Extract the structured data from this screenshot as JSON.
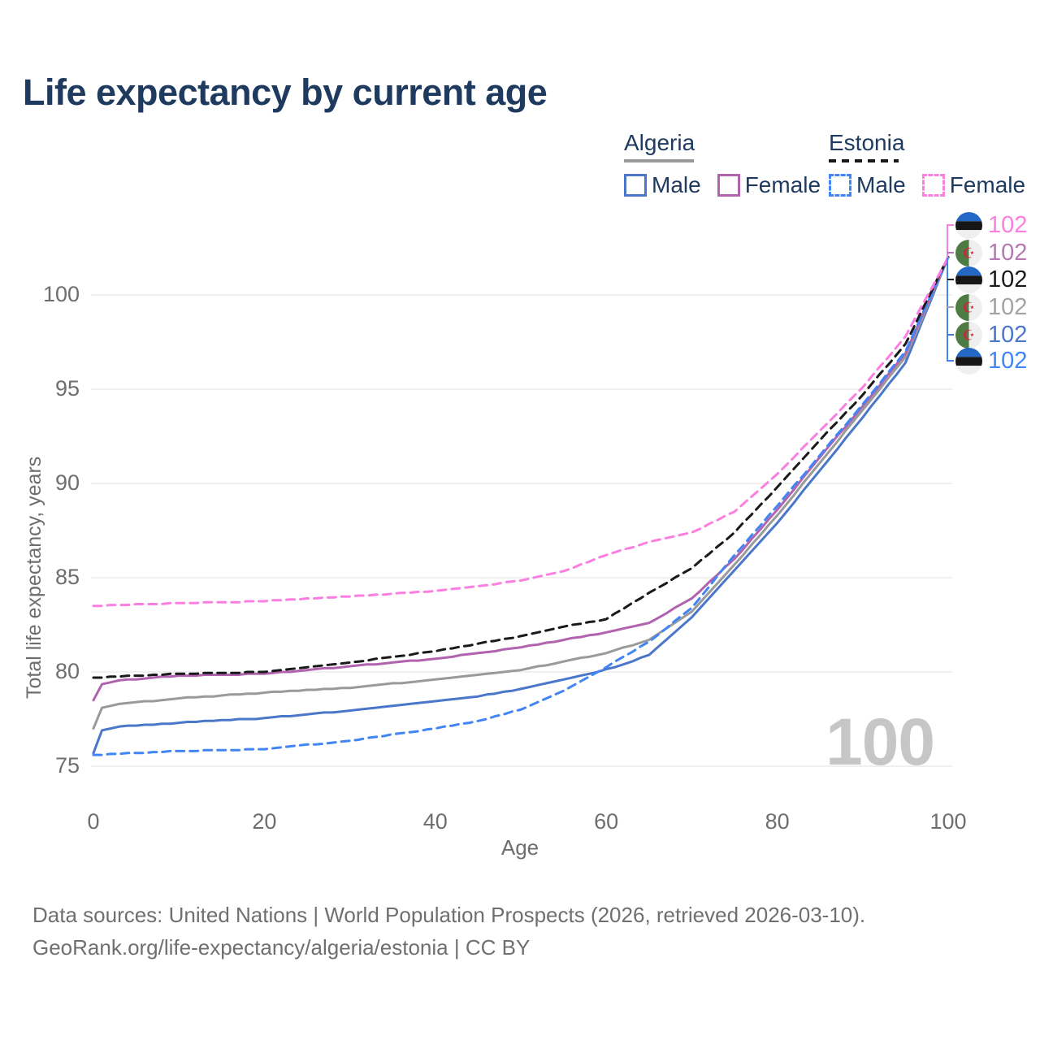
{
  "title": "Life expectancy by current age",
  "watermark": "100",
  "colors": {
    "title_text": "#1e3a5f",
    "axis_text": "#6e6e6e",
    "gridline": "#ebebeb",
    "watermark": "#c6c6c6"
  },
  "legend": {
    "groups": [
      {
        "country": "Algeria",
        "line_style": "solid",
        "underline_color": "#9a9a9a",
        "items": [
          {
            "label": "Male",
            "color": "#4a77c9",
            "dashed": false
          },
          {
            "label": "Female",
            "color": "#b163ae",
            "dashed": false
          }
        ]
      },
      {
        "country": "Estonia",
        "line_style": "dashed",
        "underline_color": "#1a1a1a",
        "items": [
          {
            "label": "Male",
            "color": "#4285f4",
            "dashed": true
          },
          {
            "label": "Female",
            "color": "#fb7fe0",
            "dashed": true
          }
        ]
      }
    ]
  },
  "chart_data": {
    "type": "line",
    "title": "Life expectancy by current age",
    "xlabel": "Age",
    "ylabel": "Total life expectancy, years",
    "xlim": [
      0,
      100
    ],
    "ylim": [
      75,
      102
    ],
    "x_ticks": [
      0,
      20,
      40,
      60,
      80,
      100
    ],
    "y_ticks": [
      75,
      80,
      85,
      90,
      95,
      100
    ],
    "grid": "horizontal",
    "legend_position": "top-right",
    "series": [
      {
        "id": "algeria-male",
        "name": "Algeria Male",
        "country": "Algeria",
        "sex": "Male",
        "color": "#4a77c9",
        "line_style": "solid",
        "points": [
          [
            0,
            75.7
          ],
          [
            1,
            76.9
          ],
          [
            3,
            77.1
          ],
          [
            10,
            77.3
          ],
          [
            20,
            77.55
          ],
          [
            30,
            77.95
          ],
          [
            40,
            78.45
          ],
          [
            45,
            78.7
          ],
          [
            50,
            79.1
          ],
          [
            55,
            79.6
          ],
          [
            59,
            80.0
          ],
          [
            62,
            80.4
          ],
          [
            65,
            80.9
          ],
          [
            70,
            82.9
          ],
          [
            75,
            85.4
          ],
          [
            80,
            87.9
          ],
          [
            85,
            90.7
          ],
          [
            90,
            93.5
          ],
          [
            95,
            96.4
          ],
          [
            100,
            102
          ]
        ]
      },
      {
        "id": "algeria-total",
        "name": "Algeria Total",
        "country": "Algeria",
        "sex": "Both",
        "color": "#9a9a9a",
        "line_style": "solid",
        "points": [
          [
            0,
            77.0
          ],
          [
            1,
            78.1
          ],
          [
            3,
            78.3
          ],
          [
            10,
            78.6
          ],
          [
            20,
            78.9
          ],
          [
            30,
            79.15
          ],
          [
            40,
            79.6
          ],
          [
            45,
            79.85
          ],
          [
            50,
            80.1
          ],
          [
            55,
            80.55
          ],
          [
            60,
            81.0
          ],
          [
            65,
            81.7
          ],
          [
            70,
            83.2
          ],
          [
            75,
            85.7
          ],
          [
            80,
            88.3
          ],
          [
            85,
            91.1
          ],
          [
            90,
            93.9
          ],
          [
            95,
            96.7
          ],
          [
            100,
            102
          ]
        ]
      },
      {
        "id": "algeria-female",
        "name": "Algeria Female",
        "country": "Algeria",
        "sex": "Female",
        "color": "#b163ae",
        "line_style": "solid",
        "points": [
          [
            0,
            78.5
          ],
          [
            1,
            79.35
          ],
          [
            3,
            79.55
          ],
          [
            10,
            79.8
          ],
          [
            20,
            79.9
          ],
          [
            30,
            80.3
          ],
          [
            40,
            80.7
          ],
          [
            45,
            81.0
          ],
          [
            50,
            81.3
          ],
          [
            55,
            81.7
          ],
          [
            60,
            82.1
          ],
          [
            65,
            82.6
          ],
          [
            70,
            83.9
          ],
          [
            75,
            86.0
          ],
          [
            80,
            88.6
          ],
          [
            85,
            91.4
          ],
          [
            90,
            94.1
          ],
          [
            95,
            96.9
          ],
          [
            100,
            102
          ]
        ]
      },
      {
        "id": "estonia-male",
        "name": "Estonia Male",
        "country": "Estonia",
        "sex": "Male",
        "color": "#4285f4",
        "line_style": "dashed",
        "points": [
          [
            0,
            75.6
          ],
          [
            10,
            75.8
          ],
          [
            20,
            75.9
          ],
          [
            30,
            76.35
          ],
          [
            40,
            77.0
          ],
          [
            45,
            77.4
          ],
          [
            50,
            78.0
          ],
          [
            55,
            79.0
          ],
          [
            59,
            80.0
          ],
          [
            65,
            81.6
          ],
          [
            70,
            83.4
          ],
          [
            75,
            86.2
          ],
          [
            80,
            88.8
          ],
          [
            85,
            91.5
          ],
          [
            90,
            94.2
          ],
          [
            95,
            97.0
          ],
          [
            100,
            102
          ]
        ]
      },
      {
        "id": "estonia-total",
        "name": "Estonia Total",
        "country": "Estonia",
        "sex": "Both",
        "color": "#1a1a1a",
        "line_style": "dashed",
        "points": [
          [
            0,
            79.7
          ],
          [
            10,
            79.9
          ],
          [
            20,
            80.0
          ],
          [
            30,
            80.5
          ],
          [
            40,
            81.1
          ],
          [
            45,
            81.5
          ],
          [
            50,
            81.9
          ],
          [
            55,
            82.4
          ],
          [
            60,
            82.8
          ],
          [
            65,
            84.2
          ],
          [
            70,
            85.5
          ],
          [
            75,
            87.4
          ],
          [
            80,
            89.8
          ],
          [
            85,
            92.3
          ],
          [
            90,
            94.7
          ],
          [
            95,
            97.4
          ],
          [
            100,
            102
          ]
        ]
      },
      {
        "id": "estonia-female",
        "name": "Estonia Female",
        "country": "Estonia",
        "sex": "Female",
        "color": "#fb7fe0",
        "line_style": "dashed",
        "points": [
          [
            0,
            83.5
          ],
          [
            10,
            83.65
          ],
          [
            20,
            83.75
          ],
          [
            30,
            84.0
          ],
          [
            40,
            84.3
          ],
          [
            45,
            84.55
          ],
          [
            50,
            84.85
          ],
          [
            55,
            85.35
          ],
          [
            60,
            86.2
          ],
          [
            65,
            86.9
          ],
          [
            70,
            87.4
          ],
          [
            75,
            88.5
          ],
          [
            80,
            90.5
          ],
          [
            85,
            92.8
          ],
          [
            90,
            95.1
          ],
          [
            95,
            97.8
          ],
          [
            100,
            102
          ]
        ]
      }
    ]
  },
  "callouts": [
    {
      "flag": "estonia",
      "series": "estonia-female",
      "label": "102",
      "color": "#fb7fe0"
    },
    {
      "flag": "algeria",
      "series": "algeria-female",
      "label": "102",
      "color": "#b57ab4"
    },
    {
      "flag": "estonia",
      "series": "estonia-total",
      "label": "102",
      "color": "#1a1a1a"
    },
    {
      "flag": "algeria",
      "series": "algeria-total",
      "label": "102",
      "color": "#a3a3a3"
    },
    {
      "flag": "algeria",
      "series": "algeria-male",
      "label": "102",
      "color": "#4a77c9"
    },
    {
      "flag": "estonia",
      "series": "estonia-male",
      "label": "102",
      "color": "#4285f4"
    }
  ],
  "flag_colors": {
    "estonia": [
      "#2368c4",
      "#161616",
      "#efefef"
    ],
    "algeria": {
      "green": "#4e7b44",
      "white": "#efefef",
      "emblem": "#d0243c"
    }
  },
  "footer": {
    "line1": "Data sources: United Nations | World Population Prospects (2026, retrieved 2026-03-10).",
    "line2": "GeoRank.org/life-expectancy/algeria/estonia | CC BY"
  }
}
